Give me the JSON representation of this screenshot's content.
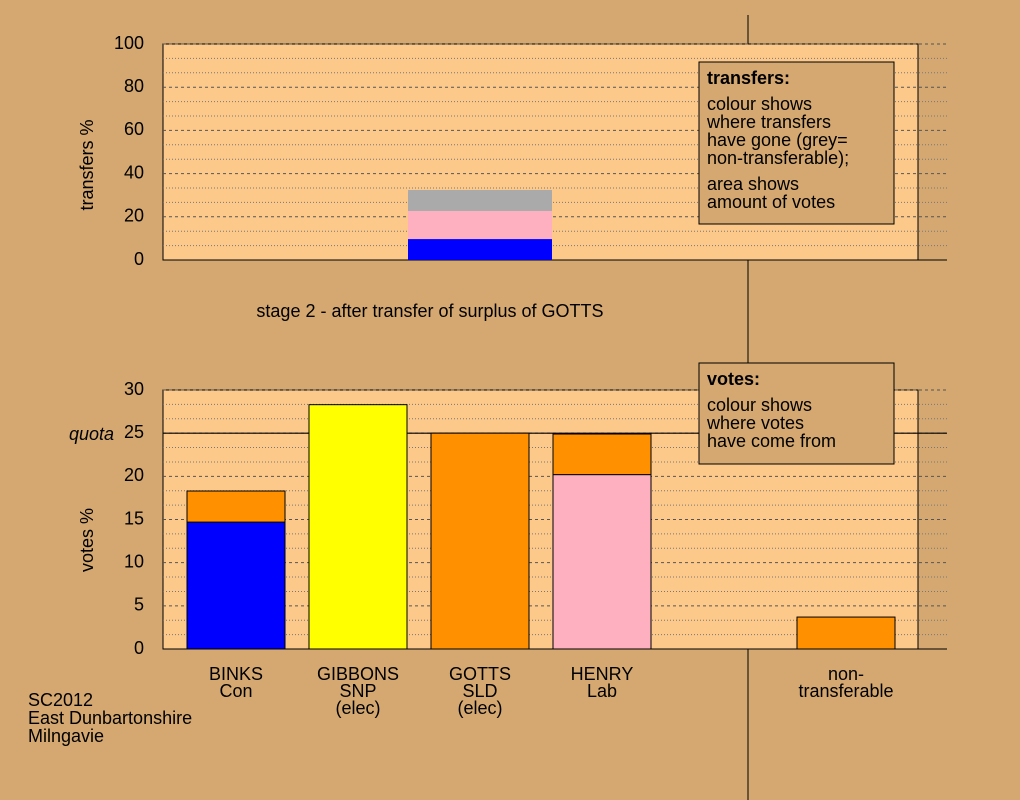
{
  "chart_data": [
    {
      "type": "bar",
      "stacked": true,
      "ylabel": "transfers %",
      "subtitle": "stage 2 - after transfer of surplus of GOTTS",
      "categories": [
        null,
        null,
        null,
        null,
        null,
        null
      ],
      "series": [
        {
          "color": "#0000ff",
          "values": [
            null,
            null,
            9.7,
            null,
            null,
            null
          ]
        },
        {
          "color": "#ffb0c0",
          "values": [
            null,
            null,
            13,
            null,
            null,
            null
          ]
        },
        {
          "color": "#aaaaaa",
          "values": [
            null,
            null,
            9.7,
            null,
            null,
            null
          ]
        }
      ],
      "ylim": [
        0,
        100
      ],
      "yticks": [
        0,
        20,
        40,
        60,
        80,
        100
      ],
      "grid": true,
      "legend_box": {
        "title": "transfers:",
        "paragraphs": [
          [
            "colour shows",
            "where transfers",
            "have gone (grey=",
            "non-transferable);"
          ],
          [
            "area shows",
            "amount of votes"
          ]
        ]
      }
    },
    {
      "type": "bar",
      "stacked": true,
      "ylabel": "votes %",
      "categories": [
        [
          "BINKS",
          "Con"
        ],
        [
          "GIBBONS",
          "SNP",
          "(elec)"
        ],
        [
          "GOTTS",
          "SLD",
          "(elec)"
        ],
        [
          "HENRY",
          "Lab"
        ],
        null,
        [
          "non-",
          "transferable"
        ]
      ],
      "series": [
        {
          "color": "#0000ff",
          "values": [
            14.7,
            null,
            null,
            null,
            null,
            null
          ]
        },
        {
          "color": "#ffff00",
          "values": [
            null,
            28.3,
            null,
            null,
            null,
            null
          ]
        },
        {
          "color": "#ffb0c0",
          "values": [
            null,
            null,
            null,
            20.2,
            null,
            null
          ]
        },
        {
          "color": "#ff9000",
          "values": [
            3.6,
            null,
            25,
            4.7,
            null,
            3.7
          ]
        }
      ],
      "ylim": [
        0,
        30
      ],
      "yticks": [
        0,
        5,
        10,
        15,
        20,
        25,
        30
      ],
      "grid": true,
      "reference_line": {
        "value": 25,
        "label": "quota"
      },
      "legend_box": {
        "title": "votes:",
        "paragraphs": [
          [
            "colour shows",
            "where votes",
            "have come from"
          ]
        ]
      }
    }
  ],
  "footer": [
    "SC2012",
    "East Dunbartonshire",
    "Milngavie"
  ]
}
